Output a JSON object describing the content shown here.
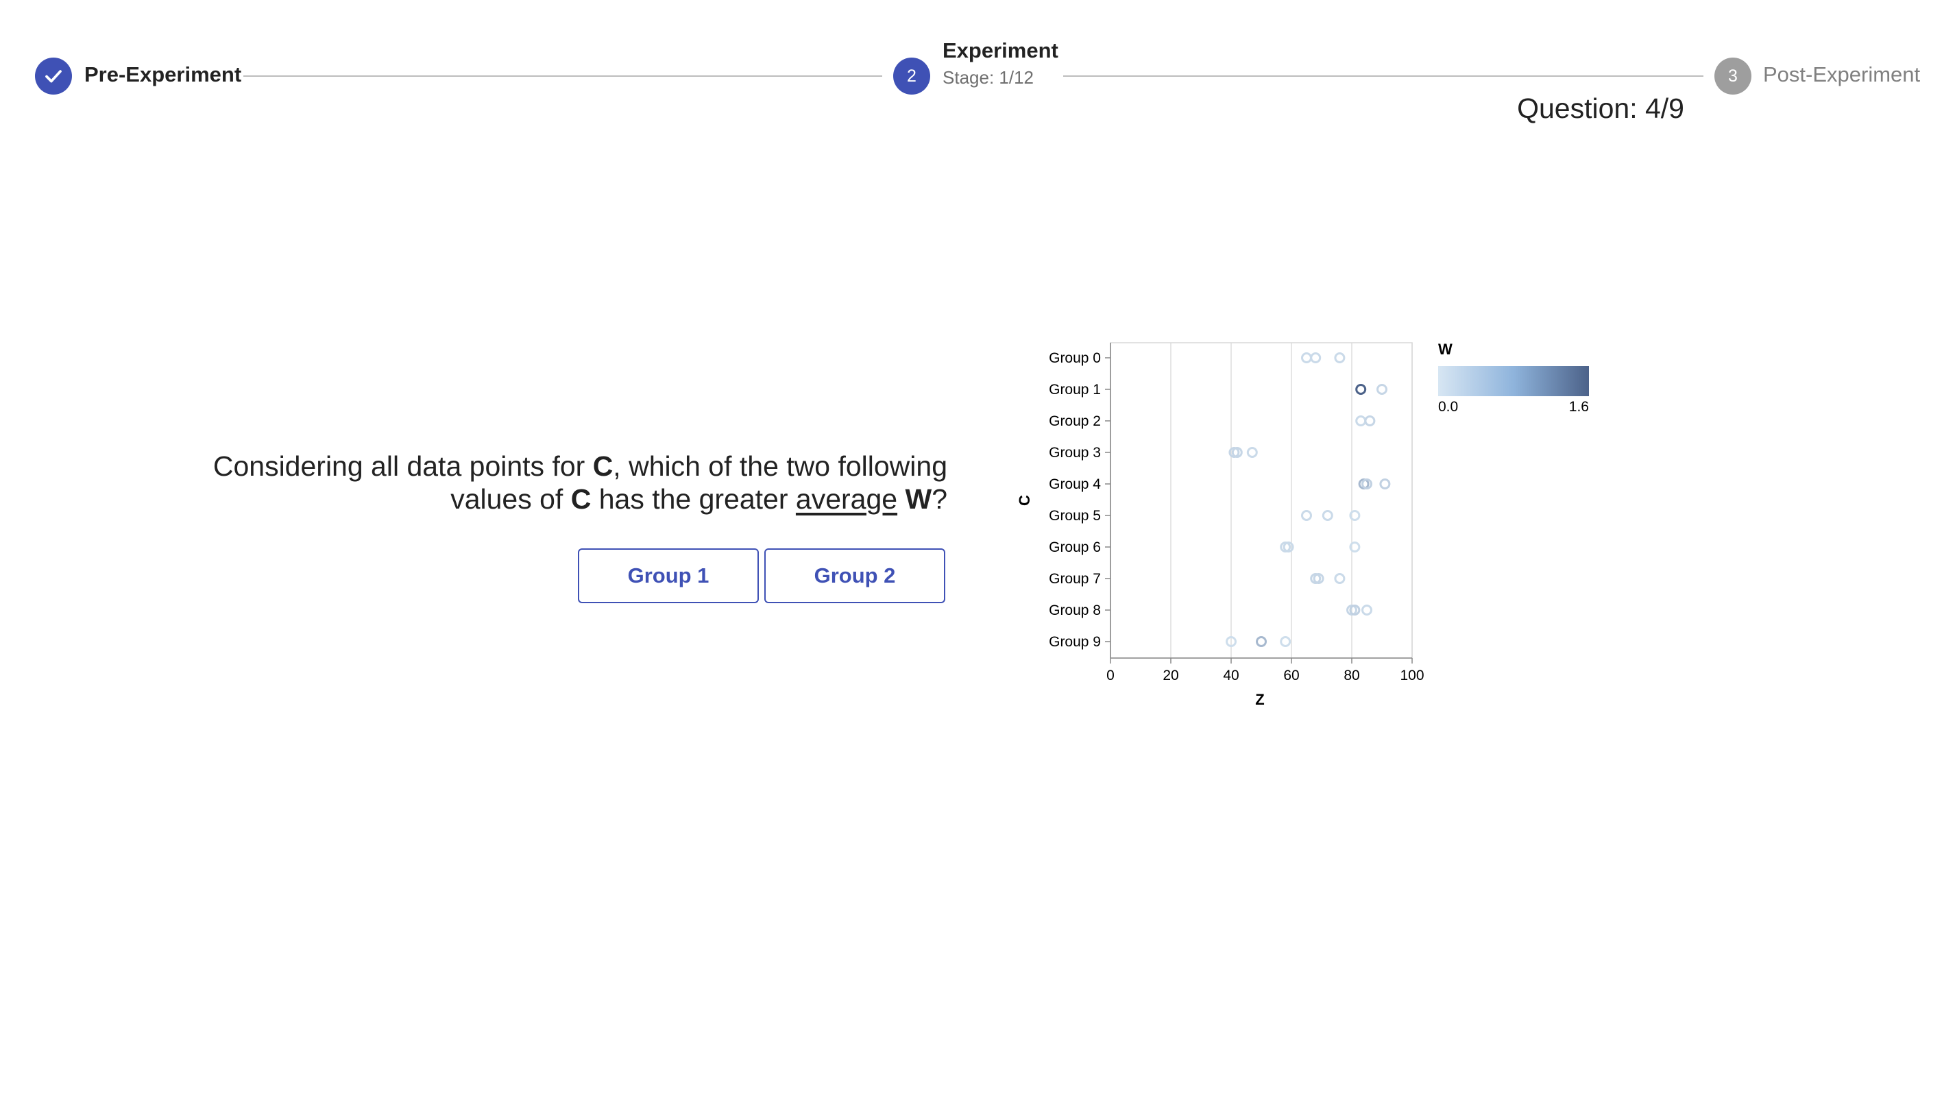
{
  "stepper": {
    "steps": [
      {
        "label": "Pre-Experiment",
        "state": "completed",
        "icon": "check-icon"
      },
      {
        "number": "2",
        "label": "Experiment",
        "state": "active",
        "stage": "Stage: 1/12",
        "question": "Question: 4/9"
      },
      {
        "number": "3",
        "label": "Post-Experiment",
        "state": "pending"
      }
    ]
  },
  "question": {
    "part1": "Considering all data points for ",
    "var_c": "C",
    "part2": ", which of the two following values of ",
    "var_c2": "C",
    "part3": " has the greater ",
    "emphasis": "average",
    "part4": " ",
    "var_w": "W",
    "part5": "?"
  },
  "answers": [
    {
      "label": "Group 1"
    },
    {
      "label": "Group 2"
    }
  ],
  "colors": {
    "primary": "#3f51b5",
    "pending": "#9e9e9e",
    "scale_low": "#d7e6f3",
    "scale_high": "#4c6289"
  },
  "chart_data": {
    "type": "scatter",
    "xlabel": "Z",
    "ylabel": "C",
    "xlim": [
      0,
      100
    ],
    "x_ticks": [
      0,
      20,
      40,
      60,
      80,
      100
    ],
    "categories": [
      "Group 0",
      "Group 1",
      "Group 2",
      "Group 3",
      "Group 4",
      "Group 5",
      "Group 6",
      "Group 7",
      "Group 8",
      "Group 9"
    ],
    "grid": true,
    "color_legend": {
      "title": "W",
      "min_label": "0.0",
      "max_label": "1.6",
      "min": 0,
      "max": 1.6,
      "placement": "top-right"
    },
    "points": [
      {
        "group": "Group 0",
        "z": 65,
        "w": 0.15
      },
      {
        "group": "Group 0",
        "z": 68,
        "w": 0.15
      },
      {
        "group": "Group 0",
        "z": 76,
        "w": 0.15
      },
      {
        "group": "Group 1",
        "z": 83,
        "w": 1.6
      },
      {
        "group": "Group 1",
        "z": 90,
        "w": 0.2
      },
      {
        "group": "Group 2",
        "z": 83,
        "w": 0.15
      },
      {
        "group": "Group 2",
        "z": 86,
        "w": 0.2
      },
      {
        "group": "Group 3",
        "z": 41,
        "w": 0.2
      },
      {
        "group": "Group 3",
        "z": 42,
        "w": 0.2
      },
      {
        "group": "Group 3",
        "z": 47,
        "w": 0.15
      },
      {
        "group": "Group 4",
        "z": 84,
        "w": 0.55
      },
      {
        "group": "Group 4",
        "z": 85,
        "w": 0.25
      },
      {
        "group": "Group 4",
        "z": 91,
        "w": 0.25
      },
      {
        "group": "Group 5",
        "z": 65,
        "w": 0.15
      },
      {
        "group": "Group 5",
        "z": 72,
        "w": 0.15
      },
      {
        "group": "Group 5",
        "z": 81,
        "w": 0.1
      },
      {
        "group": "Group 6",
        "z": 58,
        "w": 0.15
      },
      {
        "group": "Group 6",
        "z": 59,
        "w": 0.15
      },
      {
        "group": "Group 6",
        "z": 81,
        "w": 0.1
      },
      {
        "group": "Group 7",
        "z": 68,
        "w": 0.2
      },
      {
        "group": "Group 7",
        "z": 69,
        "w": 0.2
      },
      {
        "group": "Group 7",
        "z": 76,
        "w": 0.15
      },
      {
        "group": "Group 8",
        "z": 80,
        "w": 0.2
      },
      {
        "group": "Group 8",
        "z": 81,
        "w": 0.25
      },
      {
        "group": "Group 8",
        "z": 85,
        "w": 0.15
      },
      {
        "group": "Group 9",
        "z": 40,
        "w": 0.1
      },
      {
        "group": "Group 9",
        "z": 50,
        "w": 0.55
      },
      {
        "group": "Group 9",
        "z": 58,
        "w": 0.1
      }
    ]
  }
}
